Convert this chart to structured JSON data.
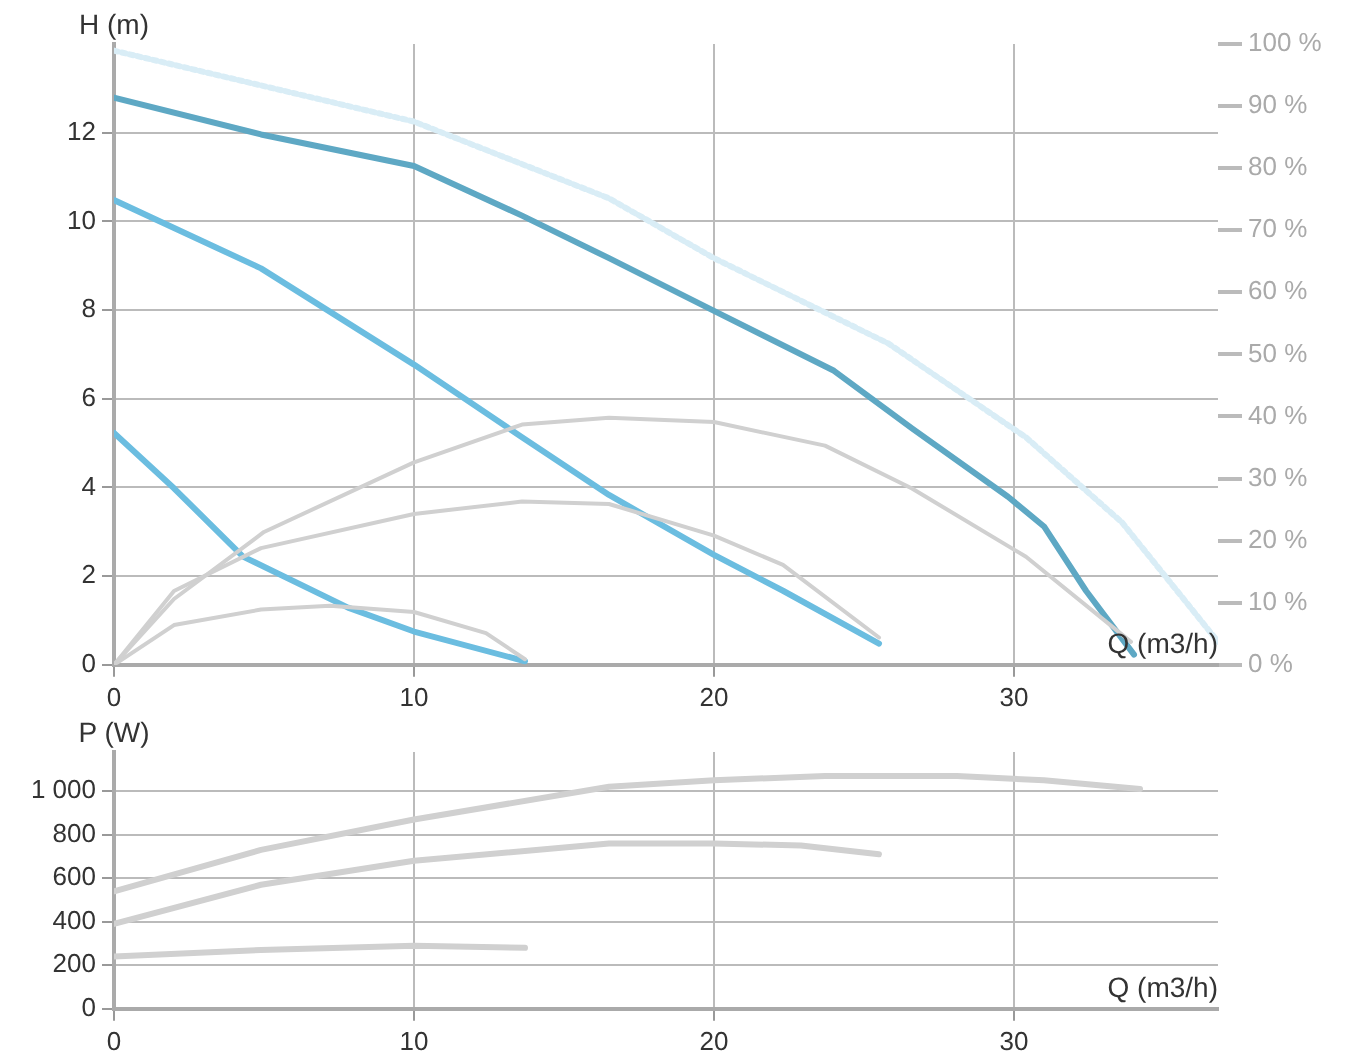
{
  "chart_data": [
    {
      "type": "line",
      "xlabel": "Q (m3/h)",
      "ylabel": "H (m)",
      "xlim": [
        0,
        36.8
      ],
      "xticks": [
        0,
        10,
        20,
        30
      ],
      "ylim": [
        0,
        14
      ],
      "yticks": [
        0,
        2,
        4,
        6,
        8,
        10,
        12
      ],
      "y2lim": [
        0,
        100
      ],
      "y2ticks": [
        {
          "value": 0,
          "label": "0 %"
        },
        {
          "value": 10,
          "label": "10 %"
        },
        {
          "value": 20,
          "label": "20 %"
        },
        {
          "value": 30,
          "label": "30 %"
        },
        {
          "value": 40,
          "label": "40 %"
        },
        {
          "value": 50,
          "label": "50 %"
        },
        {
          "value": 60,
          "label": "60 %"
        },
        {
          "value": 70,
          "label": "70 %"
        },
        {
          "value": 80,
          "label": "80 %"
        },
        {
          "value": 90,
          "label": "90 %"
        },
        {
          "value": 100,
          "label": "100 %"
        }
      ],
      "grid": true,
      "marker": "none",
      "series": [
        {
          "color": "#d9edf6",
          "line_style": "dotted",
          "x": [
            0,
            10,
            16.5,
            20,
            25.8,
            30.4,
            33.6,
            36.8
          ],
          "values": [
            13.85,
            12.25,
            10.52,
            9.17,
            7.25,
            5.13,
            3.21,
            0.52
          ]
        },
        {
          "color": "#d0d0d0",
          "axis": "y2",
          "x": [
            0,
            2,
            5,
            10,
            13.6,
            16.5,
            20,
            23.7,
            26.6,
            30.4,
            33.9
          ],
          "values": [
            0,
            10.6,
            21.4,
            32.6,
            38.7,
            39.8,
            39.1,
            35.3,
            28.4,
            17.4,
            3.7
          ]
        },
        {
          "color": "#d0d0d0",
          "axis": "y2",
          "x": [
            0,
            2,
            4.9,
            10,
            13.6,
            16.5,
            20,
            22.3,
            25.5
          ],
          "values": [
            0,
            11.9,
            18.8,
            24.3,
            26.3,
            25.9,
            20.8,
            16.1,
            4.4
          ]
        },
        {
          "color": "#d0d0d0",
          "axis": "y2",
          "x": [
            0,
            2,
            4.9,
            7.2,
            10,
            12.4,
            13.7
          ],
          "values": [
            0,
            6.4,
            8.9,
            9.5,
            8.5,
            5.1,
            0.9
          ]
        },
        {
          "color": "#5ea8c4",
          "x": [
            0,
            4.9,
            10,
            13.6,
            16.5,
            20,
            24,
            26.6,
            29.8,
            31,
            32.4,
            34
          ],
          "values": [
            12.79,
            11.96,
            11.25,
            10.13,
            9.17,
            7.98,
            6.63,
            5.33,
            3.79,
            3.12,
            1.67,
            0.23
          ]
        },
        {
          "color": "#6bbde0",
          "x": [
            0,
            4.9,
            10,
            13.6,
            16.5,
            20,
            22.3,
            25.5
          ],
          "values": [
            10.48,
            8.94,
            6.77,
            5.13,
            3.83,
            2.48,
            1.67,
            0.48
          ]
        },
        {
          "color": "#6bbde0",
          "x": [
            0,
            2,
            4.3,
            7.8,
            10,
            13.7
          ],
          "values": [
            5.23,
            3.98,
            2.44,
            1.29,
            0.75,
            0.08
          ]
        }
      ]
    },
    {
      "type": "line",
      "xlabel": "Q (m3/h)",
      "ylabel": "P (W)",
      "xlim": [
        0,
        36.8
      ],
      "xticks": [
        0,
        10,
        20,
        30
      ],
      "ylim": [
        0,
        1180
      ],
      "yticks": [
        0,
        200,
        400,
        600,
        800,
        {
          "value": 1000,
          "label": "1 000"
        }
      ],
      "grid": true,
      "marker": "none",
      "series": [
        {
          "color": "#d0d0d0",
          "x": [
            0,
            4.9,
            10,
            16.5,
            20,
            23.7,
            28.1,
            31,
            34.2
          ],
          "values": [
            540,
            730,
            870,
            1020,
            1050,
            1070,
            1070,
            1050,
            1010
          ]
        },
        {
          "color": "#d0d0d0",
          "x": [
            0,
            4.9,
            10,
            16.5,
            20,
            22.9,
            25.5
          ],
          "values": [
            390,
            570,
            680,
            760,
            760,
            750,
            710
          ]
        },
        {
          "color": "#d0d0d0",
          "x": [
            0,
            4.9,
            10,
            13.7
          ],
          "values": [
            240,
            270,
            290,
            280
          ]
        }
      ]
    }
  ]
}
